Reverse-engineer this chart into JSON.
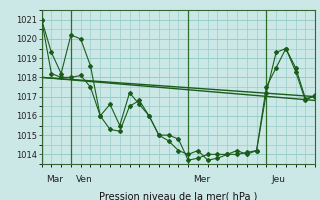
{
  "title": "Pression niveau de la mer( hPa )",
  "background_color": "#cce8e6",
  "grid_color": "#99cccc",
  "line_color": "#1a5c1a",
  "ylim": [
    1013.5,
    1021.5
  ],
  "yticks": [
    1014,
    1015,
    1016,
    1017,
    1018,
    1019,
    1020,
    1021
  ],
  "day_labels": [
    "Mar",
    "Ven",
    "Mer",
    "Jeu"
  ],
  "day_positions": [
    0,
    18,
    90,
    138
  ],
  "xlim": [
    0,
    168
  ],
  "trend_x": [
    0,
    168
  ],
  "trend_y": [
    1018.0,
    1017.0
  ],
  "trend2_x": [
    0,
    168
  ],
  "trend2_y": [
    1018.0,
    1016.8
  ],
  "series2_x": [
    0,
    6,
    12,
    18,
    24,
    30,
    36,
    42,
    48,
    54,
    60,
    66,
    72,
    78,
    84,
    90,
    96,
    102,
    108,
    114,
    120,
    126,
    132,
    138,
    144,
    150,
    156,
    162,
    168
  ],
  "series2_y": [
    1021.0,
    1019.3,
    1018.2,
    1020.2,
    1020.0,
    1018.6,
    1016.0,
    1016.6,
    1015.5,
    1017.2,
    1016.6,
    1016.0,
    1015.0,
    1015.0,
    1014.8,
    1013.7,
    1013.8,
    1014.0,
    1014.0,
    1014.0,
    1014.2,
    1014.0,
    1014.2,
    1017.2,
    1019.3,
    1019.5,
    1018.5,
    1016.9,
    1017.0
  ],
  "series3_x": [
    0,
    6,
    12,
    18,
    24,
    30,
    36,
    42,
    48,
    54,
    60,
    66,
    72,
    78,
    84,
    90,
    96,
    102,
    108,
    114,
    120,
    126,
    132,
    138,
    144,
    150,
    156,
    162,
    168
  ],
  "series3_y": [
    1021.0,
    1018.2,
    1018.0,
    1018.0,
    1018.1,
    1017.5,
    1016.0,
    1015.3,
    1015.2,
    1016.5,
    1016.8,
    1016.0,
    1015.0,
    1014.7,
    1014.2,
    1014.0,
    1014.2,
    1013.7,
    1013.8,
    1014.0,
    1014.0,
    1014.1,
    1014.2,
    1017.5,
    1018.5,
    1019.5,
    1018.3,
    1016.8,
    1017.1
  ]
}
